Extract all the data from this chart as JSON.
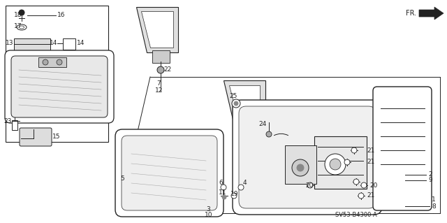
{
  "bg_color": "#ffffff",
  "lc": "#222222",
  "fig_width": 6.4,
  "fig_height": 3.19,
  "dpi": 100,
  "diagram_code": "SV53-B4300 A"
}
